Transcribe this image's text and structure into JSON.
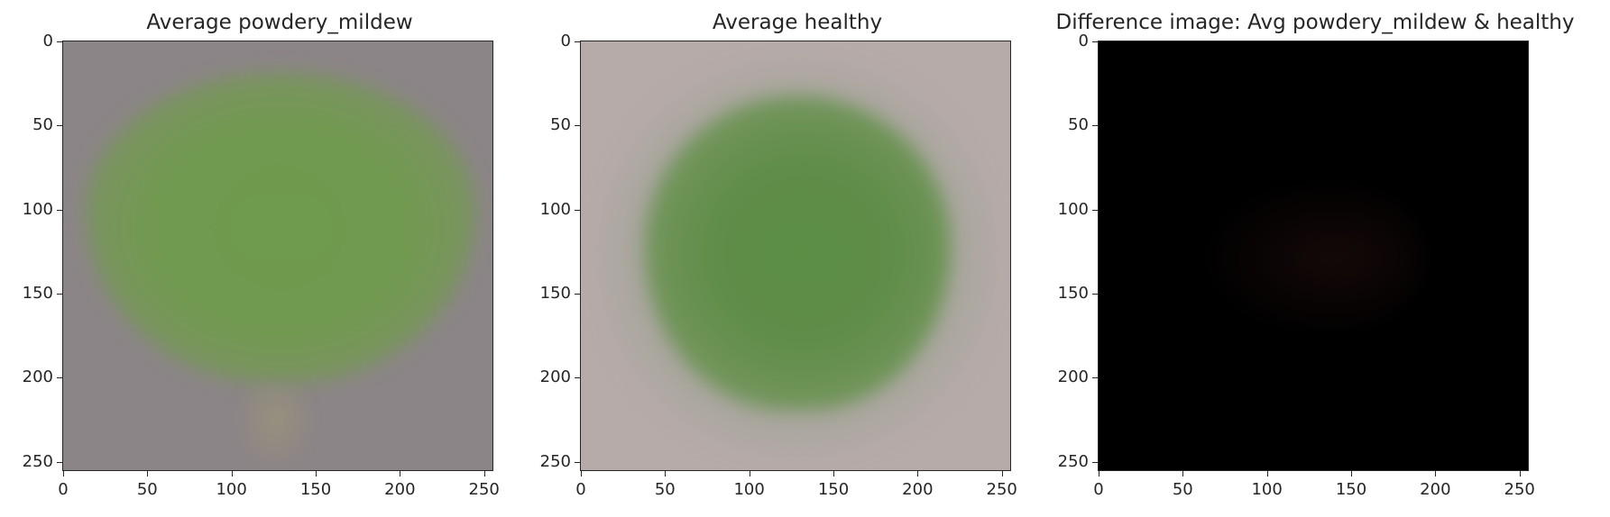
{
  "figure": {
    "panels": [
      {
        "title": "Average powdery_mildew",
        "yticks": [
          "0",
          "50",
          "100",
          "150",
          "200",
          "250"
        ],
        "xticks": [
          "0",
          "50",
          "100",
          "150",
          "200",
          "250"
        ]
      },
      {
        "title": "Average healthy",
        "yticks": [
          "0",
          "50",
          "100",
          "150",
          "200",
          "250"
        ],
        "xticks": [
          "0",
          "50",
          "100",
          "150",
          "200",
          "250"
        ]
      },
      {
        "title": "Difference image: Avg powdery_mildew & healthy",
        "yticks": [
          "0",
          "50",
          "100",
          "150",
          "200",
          "250"
        ],
        "xticks": [
          "0",
          "50",
          "100",
          "150",
          "200",
          "250"
        ]
      }
    ],
    "colors": {
      "pm_background": "#8c8587",
      "pm_leaf": "#709a4f",
      "healthy_background": "#b7abaa",
      "healthy_leaf": "#5b8e46",
      "difference_background": "#000000"
    }
  }
}
